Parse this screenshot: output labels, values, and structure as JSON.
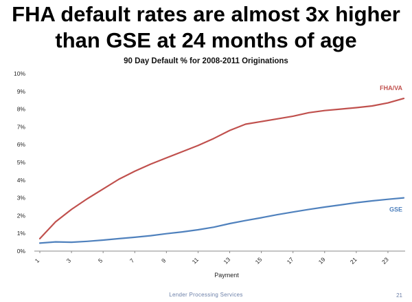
{
  "slide": {
    "title_line1": "FHA default rates are almost 3x higher",
    "title_line2": "than GSE at 24 months of age",
    "footer": "Lender Processing Services",
    "page_number": "21"
  },
  "chart_data": {
    "type": "line",
    "title": "90 Day Default % for 2008-2011 Originations",
    "xlabel": "Payment",
    "ylabel": "",
    "x": [
      1,
      2,
      3,
      4,
      5,
      6,
      7,
      8,
      9,
      10,
      11,
      12,
      13,
      14,
      15,
      16,
      17,
      18,
      19,
      20,
      21,
      22,
      23,
      24
    ],
    "x_tick_labels": [
      "1",
      "3",
      "5",
      "7",
      "9",
      "11",
      "13",
      "15",
      "17",
      "19",
      "21",
      "23"
    ],
    "y_tick_labels": [
      "0%",
      "1%",
      "2%",
      "3%",
      "4%",
      "5%",
      "6%",
      "7%",
      "8%",
      "9%",
      "10%"
    ],
    "ylim": [
      0,
      10
    ],
    "grid": false,
    "series": [
      {
        "name": "FHA/VA",
        "color": "#c0504d",
        "values": [
          0.7,
          1.65,
          2.35,
          2.95,
          3.5,
          4.05,
          4.5,
          4.9,
          5.25,
          5.6,
          5.95,
          6.35,
          6.8,
          7.15,
          7.3,
          7.45,
          7.6,
          7.8,
          7.92,
          8.0,
          8.08,
          8.18,
          8.35,
          8.6
        ]
      },
      {
        "name": "GSE",
        "color": "#4f81bd",
        "values": [
          0.45,
          0.52,
          0.5,
          0.55,
          0.62,
          0.7,
          0.78,
          0.87,
          0.98,
          1.08,
          1.2,
          1.35,
          1.55,
          1.72,
          1.88,
          2.05,
          2.2,
          2.35,
          2.48,
          2.6,
          2.73,
          2.83,
          2.92,
          3.0
        ]
      }
    ]
  }
}
